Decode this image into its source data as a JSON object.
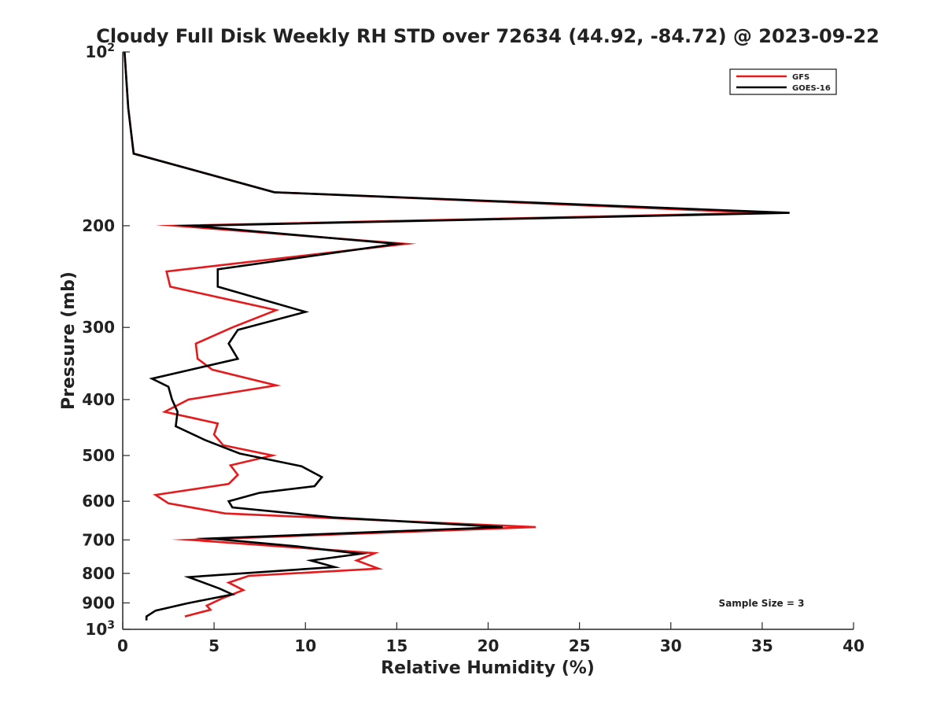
{
  "chart_data": {
    "type": "line",
    "title": "Cloudy Full Disk Weekly RH STD over 72634 (44.92, -84.72) @ 2023-09-22",
    "xlabel": "Relative Humidity (%)",
    "ylabel": "Pressure (mb)",
    "xlim": [
      0,
      40
    ],
    "ylim": [
      100,
      1000
    ],
    "yscale": "log",
    "y_reversed": true,
    "grid": false,
    "legend_position": "top-right",
    "x_ticks": [
      0,
      5,
      10,
      15,
      20,
      25,
      30,
      35,
      40
    ],
    "y_ticks": [
      {
        "value": 100,
        "base": "10",
        "exp": "2"
      },
      {
        "value": 200,
        "label": "200"
      },
      {
        "value": 300,
        "label": "300"
      },
      {
        "value": 400,
        "label": "400"
      },
      {
        "value": 500,
        "label": "500"
      },
      {
        "value": 600,
        "label": "600"
      },
      {
        "value": 700,
        "label": "700"
      },
      {
        "value": 800,
        "label": "800"
      },
      {
        "value": 900,
        "label": "900"
      },
      {
        "value": 1000,
        "base": "10",
        "exp": "3"
      }
    ],
    "annotation": "Sample Size = 3",
    "series": [
      {
        "name": "GFS",
        "color": "#e41a1c",
        "points": [
          [
            0.1,
            100
          ],
          [
            0.3,
            125
          ],
          [
            0.6,
            150
          ],
          [
            8.3,
            175
          ],
          [
            35.0,
            190
          ],
          [
            2.9,
            200
          ],
          [
            15.5,
            215
          ],
          [
            2.4,
            240
          ],
          [
            2.6,
            255
          ],
          [
            8.4,
            280
          ],
          [
            6.0,
            300
          ],
          [
            4.0,
            320
          ],
          [
            4.1,
            340
          ],
          [
            4.9,
            355
          ],
          [
            8.4,
            378
          ],
          [
            3.6,
            400
          ],
          [
            2.3,
            420
          ],
          [
            5.2,
            440
          ],
          [
            5.0,
            460
          ],
          [
            5.5,
            480
          ],
          [
            8.2,
            500
          ],
          [
            5.9,
            520
          ],
          [
            6.3,
            540
          ],
          [
            5.8,
            560
          ],
          [
            1.8,
            585
          ],
          [
            2.5,
            605
          ],
          [
            5.6,
            630
          ],
          [
            22.6,
            665
          ],
          [
            3.7,
            700
          ],
          [
            13.8,
            738
          ],
          [
            12.8,
            760
          ],
          [
            14.0,
            785
          ],
          [
            6.9,
            808
          ],
          [
            5.8,
            830
          ],
          [
            6.6,
            855
          ],
          [
            5.4,
            885
          ],
          [
            4.6,
            910
          ],
          [
            4.8,
            925
          ],
          [
            3.4,
            950
          ]
        ]
      },
      {
        "name": "GOES-16",
        "color": "#000000",
        "points": [
          [
            0.1,
            100
          ],
          [
            0.3,
            125
          ],
          [
            0.6,
            150
          ],
          [
            8.3,
            175
          ],
          [
            36.5,
            190
          ],
          [
            3.8,
            200
          ],
          [
            15.0,
            215
          ],
          [
            5.2,
            238
          ],
          [
            5.2,
            255
          ],
          [
            10.0,
            282
          ],
          [
            6.3,
            303
          ],
          [
            5.8,
            320
          ],
          [
            6.3,
            340
          ],
          [
            1.6,
            368
          ],
          [
            2.5,
            380
          ],
          [
            2.7,
            400
          ],
          [
            3.0,
            420
          ],
          [
            2.9,
            445
          ],
          [
            4.5,
            470
          ],
          [
            6.4,
            496
          ],
          [
            9.8,
            522
          ],
          [
            10.9,
            545
          ],
          [
            10.5,
            565
          ],
          [
            7.5,
            580
          ],
          [
            5.8,
            600
          ],
          [
            6.0,
            615
          ],
          [
            11.5,
            640
          ],
          [
            20.8,
            665
          ],
          [
            4.8,
            696
          ],
          [
            9.5,
            718
          ],
          [
            13.0,
            740
          ],
          [
            10.3,
            760
          ],
          [
            11.6,
            780
          ],
          [
            3.6,
            812
          ],
          [
            5.3,
            850
          ],
          [
            6.0,
            870
          ],
          [
            3.5,
            902
          ],
          [
            1.8,
            928
          ],
          [
            1.3,
            950
          ],
          [
            1.3,
            965
          ]
        ]
      }
    ]
  }
}
